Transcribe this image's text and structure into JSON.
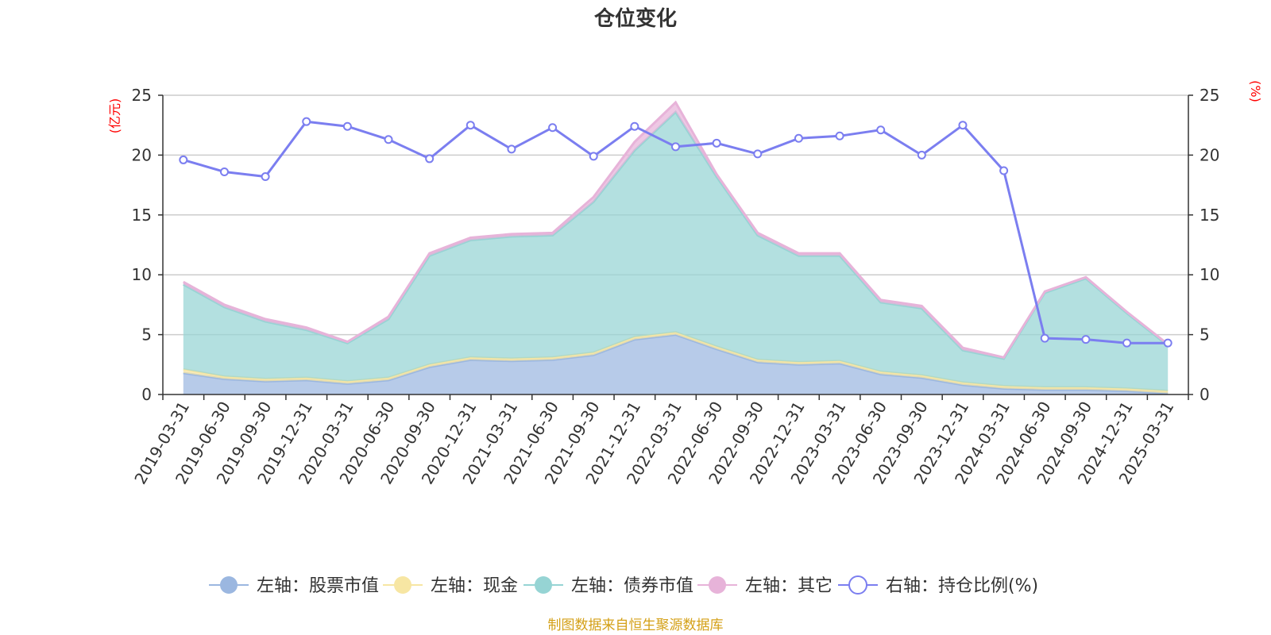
{
  "chart_data": {
    "type": "area",
    "title": "仓位变化",
    "left_axis_unit": "(亿元)",
    "right_axis_unit": "(%)",
    "ylim_left": [
      0,
      25
    ],
    "ylim_right": [
      0,
      25
    ],
    "yticks": [
      0,
      5,
      10,
      15,
      20,
      25
    ],
    "grid": true,
    "legend_position": "bottom",
    "categories": [
      "2019-03-31",
      "2019-06-30",
      "2019-09-30",
      "2019-12-31",
      "2020-03-31",
      "2020-06-30",
      "2020-09-30",
      "2020-12-31",
      "2021-03-31",
      "2021-06-30",
      "2021-09-30",
      "2021-12-31",
      "2022-03-31",
      "2022-06-30",
      "2022-09-30",
      "2022-12-31",
      "2023-03-31",
      "2023-06-30",
      "2023-09-30",
      "2023-12-31",
      "2024-03-31",
      "2024-06-30",
      "2024-09-30",
      "2024-12-31",
      "2025-03-31"
    ],
    "stacked_series": [
      {
        "name": "左轴：股票市值",
        "color": "#9bb7e0",
        "values": [
          1.8,
          1.3,
          1.1,
          1.2,
          0.9,
          1.2,
          2.3,
          2.9,
          2.8,
          2.9,
          3.3,
          4.6,
          5.0,
          3.8,
          2.7,
          2.5,
          2.6,
          1.7,
          1.4,
          0.8,
          0.5,
          0.4,
          0.4,
          0.3,
          0.1
        ]
      },
      {
        "name": "左轴：现金",
        "color": "#f7e6a3",
        "values": [
          0.3,
          0.2,
          0.2,
          0.2,
          0.2,
          0.2,
          0.2,
          0.2,
          0.2,
          0.2,
          0.2,
          0.2,
          0.2,
          0.2,
          0.2,
          0.2,
          0.2,
          0.2,
          0.2,
          0.2,
          0.2,
          0.2,
          0.2,
          0.2,
          0.2
        ]
      },
      {
        "name": "左轴：债券市值",
        "color": "#96d4d4",
        "values": [
          7.1,
          5.8,
          4.8,
          4.0,
          3.2,
          4.9,
          9.1,
          9.8,
          10.2,
          10.2,
          12.6,
          15.6,
          18.4,
          14.2,
          10.4,
          8.9,
          8.8,
          5.8,
          5.6,
          2.7,
          2.3,
          7.9,
          9.1,
          6.3,
          3.8
        ]
      },
      {
        "name": "左轴：其它",
        "color": "#e7b3d9",
        "values": [
          0.2,
          0.2,
          0.2,
          0.2,
          0.1,
          0.2,
          0.2,
          0.2,
          0.2,
          0.2,
          0.4,
          0.7,
          0.8,
          0.2,
          0.2,
          0.2,
          0.2,
          0.2,
          0.2,
          0.2,
          0.1,
          0.1,
          0.1,
          0.1,
          0.1
        ]
      }
    ],
    "line_series": {
      "name": "右轴：持仓比例(%)",
      "color": "#7b7ef0",
      "values": [
        19.6,
        18.6,
        18.2,
        22.8,
        22.4,
        21.3,
        19.7,
        22.5,
        20.5,
        22.3,
        19.9,
        22.4,
        20.7,
        21.0,
        20.1,
        21.4,
        21.6,
        22.1,
        20.0,
        22.5,
        18.7,
        4.7,
        4.6,
        4.3,
        4.3
      ]
    }
  },
  "footer": "制图数据来自恒生聚源数据库"
}
